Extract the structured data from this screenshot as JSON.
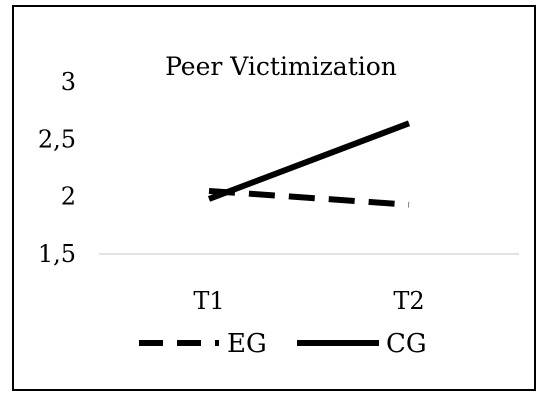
{
  "chart_data": {
    "type": "line",
    "title": "Peer Victimization",
    "xlabel": "",
    "ylabel": "",
    "categories": [
      "T1",
      "T2"
    ],
    "ylim": [
      1.5,
      3
    ],
    "yticks": [
      "1,5",
      "2",
      "2,5",
      "3"
    ],
    "ytick_values": [
      1.5,
      2,
      2.5,
      3
    ],
    "grid": false,
    "legend_position": "bottom",
    "series": [
      {
        "name": "EG",
        "values": [
          2.05,
          1.93
        ],
        "style": "dashed",
        "color": "#000000"
      },
      {
        "name": "CG",
        "values": [
          1.98,
          2.64
        ],
        "style": "solid",
        "color": "#000000"
      }
    ]
  }
}
